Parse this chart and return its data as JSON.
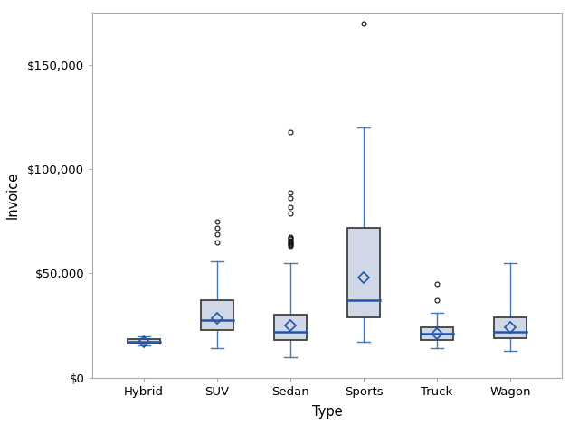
{
  "categories": [
    "Hybrid",
    "SUV",
    "Sedan",
    "Sports",
    "Truck",
    "Wagon"
  ],
  "xlabel": "Type",
  "ylabel": "Invoice",
  "ylim": [
    0,
    175000
  ],
  "yticks": [
    0,
    50000,
    100000,
    150000
  ],
  "ytick_labels": [
    "$0",
    "$50,000",
    "$100,000",
    "$150,000"
  ],
  "box_facecolor": "#d0d8e8",
  "box_edgecolor": "#404040",
  "median_color": "#2255aa",
  "whisker_color": "#4477bb",
  "flier_color": "#111111",
  "mean_marker_color": "#2255aa",
  "background_color": "#ffffff",
  "figsize": [
    6.4,
    4.8
  ],
  "dpi": 100,
  "box_width": 0.45,
  "box_data": {
    "Hybrid": {
      "q1": 16500,
      "median": 17200,
      "q3": 18500,
      "whisker_low": 15500,
      "whisker_high": 20000,
      "mean": 17200,
      "outliers": []
    },
    "SUV": {
      "q1": 23000,
      "median": 27500,
      "q3": 37000,
      "whisker_low": 14000,
      "whisker_high": 56000,
      "mean": 28500,
      "outliers": [
        65000,
        69000,
        72000,
        75000
      ]
    },
    "Sedan": {
      "q1": 18000,
      "median": 22000,
      "q3": 30000,
      "whisker_low": 10000,
      "whisker_high": 55000,
      "mean": 25000,
      "outliers": [
        63000,
        63500,
        64000,
        64500,
        65000,
        65500,
        66000,
        66500,
        67000,
        67500,
        79000,
        82000,
        86000,
        89000,
        118000
      ]
    },
    "Sports": {
      "q1": 29000,
      "median": 37000,
      "q3": 72000,
      "whisker_low": 17000,
      "whisker_high": 120000,
      "mean": 48000,
      "outliers": [
        170000
      ]
    },
    "Truck": {
      "q1": 18000,
      "median": 21000,
      "q3": 24000,
      "whisker_low": 14000,
      "whisker_high": 31000,
      "mean": 21000,
      "outliers": [
        37000,
        45000
      ]
    },
    "Wagon": {
      "q1": 19000,
      "median": 22000,
      "q3": 29000,
      "whisker_low": 13000,
      "whisker_high": 55000,
      "mean": 24000,
      "outliers": []
    }
  }
}
